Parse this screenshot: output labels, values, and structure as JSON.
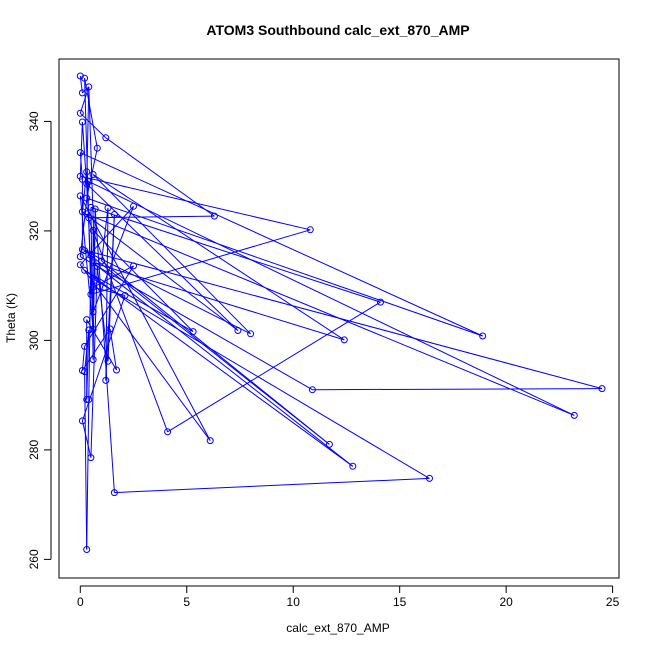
{
  "chart_data": {
    "type": "line",
    "title": "ATOM3 Southbound calc_ext_870_AMP",
    "xlabel": "calc_ext_870_AMP",
    "ylabel": "Theta (K)",
    "xlim": [
      -1,
      25.3
    ],
    "ylim": [
      256.6,
      351.4
    ],
    "xticks": [
      0,
      5,
      10,
      15,
      20,
      25
    ],
    "yticks": [
      260,
      280,
      300,
      320,
      340
    ],
    "grid": false,
    "legend": "none",
    "series_color": "#0000ff",
    "markers": "open-circle",
    "points": [
      {
        "x": 0.0,
        "y": 348.3
      },
      {
        "x": 0.2,
        "y": 347.9
      },
      {
        "x": 0.1,
        "y": 345.2
      },
      {
        "x": 0.4,
        "y": 346.3
      },
      {
        "x": 0.0,
        "y": 341.5
      },
      {
        "x": 0.1,
        "y": 339.9
      },
      {
        "x": 1.2,
        "y": 337.0
      },
      {
        "x": 0.8,
        "y": 335.1
      },
      {
        "x": 0.0,
        "y": 334.3
      },
      {
        "x": 0.3,
        "y": 330.8
      },
      {
        "x": 0.6,
        "y": 330.3
      },
      {
        "x": 0.0,
        "y": 330.0
      },
      {
        "x": 0.1,
        "y": 329.4
      },
      {
        "x": 0.4,
        "y": 329.0
      },
      {
        "x": 0.3,
        "y": 328.6
      },
      {
        "x": 0.0,
        "y": 326.4
      },
      {
        "x": 0.3,
        "y": 326.0
      },
      {
        "x": 2.5,
        "y": 324.5
      },
      {
        "x": 0.5,
        "y": 324.3
      },
      {
        "x": 0.7,
        "y": 324.0
      },
      {
        "x": 1.3,
        "y": 324.2
      },
      {
        "x": 0.1,
        "y": 323.5
      },
      {
        "x": 0.3,
        "y": 323.1
      },
      {
        "x": 1.6,
        "y": 323.0
      },
      {
        "x": 6.3,
        "y": 322.7
      },
      {
        "x": 0.4,
        "y": 322.4
      },
      {
        "x": 0.6,
        "y": 320.1
      },
      {
        "x": 10.8,
        "y": 320.2
      },
      {
        "x": 0.1,
        "y": 316.6
      },
      {
        "x": 0.2,
        "y": 316.4
      },
      {
        "x": 0.0,
        "y": 315.3
      },
      {
        "x": 0.5,
        "y": 315.5
      },
      {
        "x": 1.0,
        "y": 314.5
      },
      {
        "x": 0.0,
        "y": 313.8
      },
      {
        "x": 0.6,
        "y": 314.2
      },
      {
        "x": 0.2,
        "y": 312.8
      },
      {
        "x": 0.8,
        "y": 313.5
      },
      {
        "x": 2.5,
        "y": 313.6
      },
      {
        "x": 0.7,
        "y": 311.0
      },
      {
        "x": 0.6,
        "y": 309.7
      },
      {
        "x": 0.5,
        "y": 308.4
      },
      {
        "x": 2.1,
        "y": 308.2
      },
      {
        "x": 14.1,
        "y": 307.0
      },
      {
        "x": 0.6,
        "y": 305.2
      },
      {
        "x": 0.3,
        "y": 303.8
      },
      {
        "x": 1.4,
        "y": 302.1
      },
      {
        "x": 5.3,
        "y": 301.6
      },
      {
        "x": 7.4,
        "y": 301.8
      },
      {
        "x": 8.0,
        "y": 301.2
      },
      {
        "x": 0.4,
        "y": 301.9
      },
      {
        "x": 0.6,
        "y": 302.0
      },
      {
        "x": 18.9,
        "y": 300.8
      },
      {
        "x": 12.4,
        "y": 300.1
      },
      {
        "x": 0.2,
        "y": 298.9
      },
      {
        "x": 1.3,
        "y": 296.2
      },
      {
        "x": 0.6,
        "y": 296.5
      },
      {
        "x": 1.7,
        "y": 294.6
      },
      {
        "x": 0.1,
        "y": 294.5
      },
      {
        "x": 0.2,
        "y": 294.3
      },
      {
        "x": 1.2,
        "y": 292.7
      },
      {
        "x": 10.9,
        "y": 291.0
      },
      {
        "x": 24.5,
        "y": 291.2
      },
      {
        "x": 0.3,
        "y": 289.2
      },
      {
        "x": 0.4,
        "y": 289.2
      },
      {
        "x": 23.2,
        "y": 286.3
      },
      {
        "x": 0.1,
        "y": 285.3
      },
      {
        "x": 4.1,
        "y": 283.3
      },
      {
        "x": 6.1,
        "y": 281.7
      },
      {
        "x": 11.7,
        "y": 281.0
      },
      {
        "x": 0.5,
        "y": 278.6
      },
      {
        "x": 12.8,
        "y": 277.0
      },
      {
        "x": 16.4,
        "y": 274.8
      },
      {
        "x": 1.6,
        "y": 272.2
      },
      {
        "x": 0.3,
        "y": 261.8
      }
    ],
    "path": [
      [
        0,
        2
      ],
      [
        2,
        3
      ],
      [
        3,
        4
      ],
      [
        4,
        6
      ],
      [
        6,
        24
      ],
      [
        24,
        25
      ],
      [
        25,
        5
      ],
      [
        5,
        11
      ],
      [
        11,
        27
      ],
      [
        27,
        40
      ],
      [
        40,
        1
      ],
      [
        1,
        7
      ],
      [
        7,
        16
      ],
      [
        16,
        51
      ],
      [
        51,
        8
      ],
      [
        8,
        12
      ],
      [
        12,
        28
      ],
      [
        28,
        61
      ],
      [
        61,
        60
      ],
      [
        60,
        30
      ],
      [
        30,
        13
      ],
      [
        13,
        64
      ],
      [
        64,
        22
      ],
      [
        22,
        66
      ],
      [
        66,
        42
      ],
      [
        42,
        18
      ],
      [
        18,
        55
      ],
      [
        55,
        19
      ],
      [
        19,
        72
      ],
      [
        72,
        71
      ],
      [
        71,
        38
      ],
      [
        38,
        3
      ],
      [
        3,
        14
      ],
      [
        14,
        47
      ],
      [
        47,
        21
      ],
      [
        21,
        9
      ],
      [
        9,
        50
      ],
      [
        50,
        15
      ],
      [
        15,
        67
      ],
      [
        67,
        33
      ],
      [
        33,
        17
      ],
      [
        17,
        43
      ],
      [
        43,
        26
      ],
      [
        26,
        46
      ],
      [
        46,
        35
      ],
      [
        35,
        70
      ],
      [
        70,
        34
      ],
      [
        34,
        52
      ],
      [
        52,
        10
      ],
      [
        10,
        48
      ],
      [
        48,
        29
      ],
      [
        29,
        68
      ],
      [
        68,
        32
      ],
      [
        32,
        20
      ],
      [
        20,
        59
      ],
      [
        59,
        23
      ],
      [
        23,
        54
      ],
      [
        54,
        36
      ],
      [
        36,
        69
      ],
      [
        69,
        65
      ],
      [
        65,
        41
      ],
      [
        41,
        39
      ],
      [
        39,
        37
      ],
      [
        37,
        53
      ],
      [
        53,
        57
      ],
      [
        57,
        45
      ],
      [
        45,
        56
      ],
      [
        56,
        44
      ],
      [
        44,
        62
      ],
      [
        62,
        49
      ],
      [
        49,
        58
      ],
      [
        58,
        73
      ],
      [
        73,
        63
      ],
      [
        63,
        31
      ]
    ]
  }
}
